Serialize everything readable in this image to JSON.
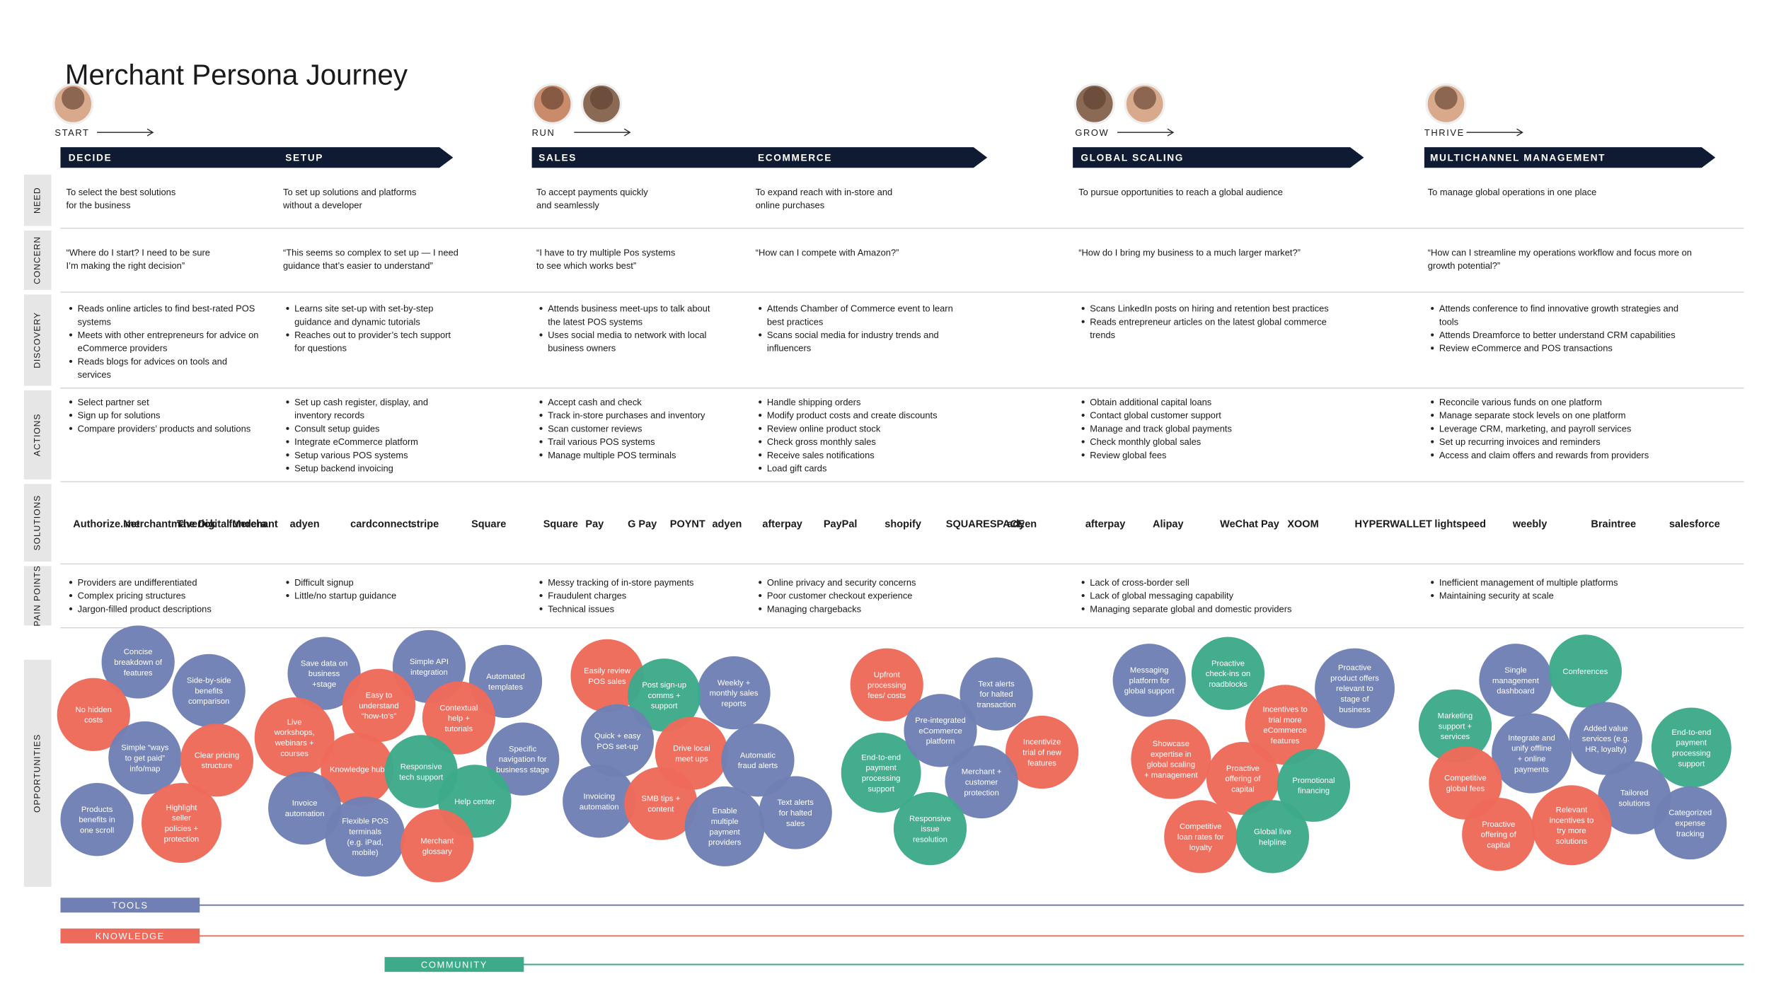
{
  "title": "Merchant Persona Journey",
  "stages": [
    {
      "label": "START",
      "phases": [
        "DECIDE",
        "SETUP"
      ]
    },
    {
      "label": "RUN",
      "phases": [
        "SALES",
        "ECOMMERCE"
      ]
    },
    {
      "label": "GROW",
      "phases": [
        "GLOBAL SCALING"
      ]
    },
    {
      "label": "THRIVE",
      "phases": [
        "MULTICHANNEL MANAGEMENT"
      ]
    }
  ],
  "rows": [
    "NEED",
    "CONCERN",
    "DISCOVERY",
    "ACTIONS",
    "SOLUTIONS",
    "PAIN POINTS",
    "OPPORTUNITIES"
  ],
  "columns": [
    {
      "need": [
        "To select the best solutions",
        "for the business"
      ],
      "concern": [
        "“Where do I start? I need to be sure",
        "I’m making the right decision”"
      ],
      "discovery": [
        "Reads online articles to find best-rated POS systems",
        "Meets with other entrepreneurs for advice on eCommerce providers",
        "Reads blogs for advices on tools and services"
      ],
      "actions": [
        "Select partner set",
        "Sign up for solutions",
        "Compare providers’ products and solutions"
      ],
      "solutions": [
        "Authorize.Net",
        "merchantmaverick",
        "The Digital Merchant",
        "fundera"
      ],
      "pain_points": [
        "Providers are undifferentiated",
        "Complex pricing structures",
        "Jargon-filled product descriptions"
      ],
      "opportunities": [
        {
          "text": "Concise breakdown of features",
          "color": "#7080b5"
        },
        {
          "text": "Side-by-side benefits comparison",
          "color": "#7080b5"
        },
        {
          "text": "No hidden costs",
          "color": "#ee6a5a"
        },
        {
          "text": "Simple “ways to get paid” info/map",
          "color": "#7080b5"
        },
        {
          "text": "Clear pricing structure",
          "color": "#ee6a5a"
        },
        {
          "text": "Products benefits in one scroll",
          "color": "#7080b5"
        },
        {
          "text": "Highlight seller policies + protection",
          "color": "#ee6a5a"
        }
      ]
    },
    {
      "need": [
        "To set up solutions and platforms",
        "without a developer"
      ],
      "concern": [
        "“This seems so complex to set up — I need",
        "guidance that’s easier to understand”"
      ],
      "discovery": [
        "Learns site set-up with set-by-step guidance and dynamic tutorials",
        "Reaches out to provider’s tech support for questions"
      ],
      "actions": [
        "Set up cash register, display, and inventory records",
        "Consult setup guides",
        "Integrate eCommerce platform",
        "Setup various POS systems",
        "Setup backend invoicing"
      ],
      "solutions": [
        "adyen",
        "cardconnect.",
        "stripe",
        "Square"
      ],
      "pain_points": [
        "Difficult signup",
        "Little/no startup guidance"
      ],
      "opportunities": [
        {
          "text": "Save data on business +stage",
          "color": "#7080b5"
        },
        {
          "text": "Simple API integration",
          "color": "#7080b5"
        },
        {
          "text": "Automated templates",
          "color": "#7080b5"
        },
        {
          "text": "Live workshops, webinars + courses",
          "color": "#ee6a5a"
        },
        {
          "text": "Easy to understand “how-to’s”",
          "color": "#ee6a5a"
        },
        {
          "text": "Contextual help + tutorials",
          "color": "#ee6a5a"
        },
        {
          "text": "Knowledge hub",
          "color": "#ee6a5a"
        },
        {
          "text": "Responsive tech support",
          "color": "#3daa8a"
        },
        {
          "text": "Specific navigation for business stage",
          "color": "#7080b5"
        },
        {
          "text": "Invoice automation",
          "color": "#7080b5"
        },
        {
          "text": "Help center",
          "color": "#3daa8a"
        },
        {
          "text": "Flexible POS terminals (e.g. iPad, mobile)",
          "color": "#7080b5"
        },
        {
          "text": "Merchant glossary",
          "color": "#ee6a5a"
        }
      ]
    },
    {
      "need": [
        "To accept payments quickly",
        "and seamlessly"
      ],
      "concern": [
        "“I have to try multiple Pos systems",
        "to see which works best”"
      ],
      "discovery": [
        "Attends business meet-ups to talk about the latest POS systems",
        "Uses social media to network with local business owners"
      ],
      "actions": [
        "Accept cash and check",
        "Track in-store purchases and inventory",
        "Scan customer reviews",
        "Trail various POS systems",
        "Manage multiple POS terminals"
      ],
      "solutions": [
        "Square",
        "Pay",
        "G Pay",
        "POYNT",
        "adyen"
      ],
      "pain_points": [
        "Messy tracking of in-store payments",
        "Fraudulent charges",
        "Technical issues"
      ],
      "opportunities": [
        {
          "text": "Easily review POS sales",
          "color": "#ee6a5a"
        },
        {
          "text": "Weekly + monthly sales reports",
          "color": "#7080b5"
        },
        {
          "text": "Post sign-up comms + support",
          "color": "#3daa8a"
        },
        {
          "text": "Quick + easy POS set-up",
          "color": "#7080b5"
        },
        {
          "text": "Drive local meet ups",
          "color": "#ee6a5a"
        },
        {
          "text": "Automatic fraud alerts",
          "color": "#7080b5"
        },
        {
          "text": "Invoicing automation",
          "color": "#7080b5"
        },
        {
          "text": "SMB tips + content",
          "color": "#ee6a5a"
        },
        {
          "text": "Enable multiple payment providers",
          "color": "#7080b5"
        },
        {
          "text": "Text alerts for halted sales",
          "color": "#7080b5"
        }
      ]
    },
    {
      "need": [
        "To expand reach with in-store and",
        "online purchases"
      ],
      "concern": [
        "“How can I compete with Amazon?”"
      ],
      "discovery": [
        "Attends Chamber of Commerce event to learn best practices",
        "Scans social media for industry trends and influencers"
      ],
      "actions": [
        "Handle shipping orders",
        "Modify product costs and create discounts",
        "Review online product stock",
        "Check gross monthly sales",
        "Receive sales notifications",
        "Load gift cards"
      ],
      "solutions": [
        "afterpay",
        "PayPal",
        "shopify",
        "SQUARESPACE",
        "adyen"
      ],
      "pain_points": [
        "Online privacy and security concerns",
        "Poor customer checkout experience",
        "Managing chargebacks"
      ],
      "opportunities": [
        {
          "text": "Upfront processing fees/ costs",
          "color": "#ee6a5a"
        },
        {
          "text": "Text alerts for halted transaction",
          "color": "#7080b5"
        },
        {
          "text": "Incentivize trial of new features",
          "color": "#ee6a5a"
        },
        {
          "text": "End-to-end payment processing support",
          "color": "#3daa8a"
        },
        {
          "text": "Pre-integrated eCommerce platform",
          "color": "#7080b5"
        },
        {
          "text": "Merchant + customer protection",
          "color": "#7080b5"
        },
        {
          "text": "Responsive issue resolution",
          "color": "#3daa8a"
        }
      ]
    },
    {
      "need": [
        "To pursue opportunities to reach a global audience"
      ],
      "concern": [
        "“How do I bring my business to a much larger market?”"
      ],
      "discovery": [
        "Scans LinkedIn posts on hiring and retention best practices",
        "Reads entrepreneur articles on the latest global commerce trends"
      ],
      "actions": [
        "Obtain additional capital loans",
        "Contact global customer support",
        "Manage and track global payments",
        "Check monthly global sales",
        "Review global fees"
      ],
      "solutions": [
        "afterpay",
        "Alipay",
        "WeChat Pay",
        "XOOM",
        "HYPERWALLET"
      ],
      "pain_points": [
        "Lack of cross-border sell",
        "Lack of global messaging capability",
        "Managing separate global and domestic providers"
      ],
      "opportunities": [
        {
          "text": "Messaging platform for global support",
          "color": "#7080b5"
        },
        {
          "text": "Proactive check-ins on roadblocks",
          "color": "#3daa8a"
        },
        {
          "text": "Proactive product offers relevant to stage of business",
          "color": "#7080b5"
        },
        {
          "text": "Showcase expertise in global scaling + management",
          "color": "#ee6a5a"
        },
        {
          "text": "Incentives to trial more eCommerce features",
          "color": "#ee6a5a"
        },
        {
          "text": "Proactive offering of capital",
          "color": "#ee6a5a"
        },
        {
          "text": "Promotional financing",
          "color": "#3daa8a"
        },
        {
          "text": "Competitive loan rates for loyalty",
          "color": "#ee6a5a"
        },
        {
          "text": "Global live helpline",
          "color": "#3daa8a"
        }
      ]
    },
    {
      "need": [
        "To manage global operations in one place"
      ],
      "concern": [
        "“How can I streamline my operations workflow and focus more on",
        "growth potential?”"
      ],
      "discovery": [
        "Attends conference to find innovative growth strategies and tools",
        "Attends Dreamforce to better understand CRM capabilities",
        "Review eCommerce and POS transactions"
      ],
      "actions": [
        "Reconcile various funds on one platform",
        "Manage separate stock levels on one platform",
        "Leverage CRM, marketing, and payroll services",
        "Set up recurring invoices and reminders",
        "Access and claim offers and rewards from providers"
      ],
      "solutions": [
        "lightspeed",
        "weebly",
        "Braintree",
        "salesforce"
      ],
      "pain_points": [
        "Inefficient management of multiple platforms",
        "Maintaining security at scale"
      ],
      "opportunities": [
        {
          "text": "Single management dashboard",
          "color": "#7080b5"
        },
        {
          "text": "Conferences",
          "color": "#3daa8a"
        },
        {
          "text": "Marketing support + services",
          "color": "#3daa8a"
        },
        {
          "text": "Added value services (e.g. HR, loyalty)",
          "color": "#7080b5"
        },
        {
          "text": "End-to-end payment processing support",
          "color": "#3daa8a"
        },
        {
          "text": "Integrate and unify offline + online payments",
          "color": "#7080b5"
        },
        {
          "text": "Competitive global fees",
          "color": "#ee6a5a"
        },
        {
          "text": "Tailored solutions",
          "color": "#7080b5"
        },
        {
          "text": "Categorized expense tracking",
          "color": "#7080b5"
        },
        {
          "text": "Relevant incentives to try more solutions",
          "color": "#ee6a5a"
        },
        {
          "text": "Proactive offering of capital",
          "color": "#ee6a5a"
        }
      ]
    }
  ],
  "tracks": [
    {
      "name": "TOOLS",
      "color": "#7080b5"
    },
    {
      "name": "KNOWLEDGE",
      "color": "#ee6a5a"
    },
    {
      "name": "COMMUNITY",
      "color": "#3daa8a"
    }
  ]
}
